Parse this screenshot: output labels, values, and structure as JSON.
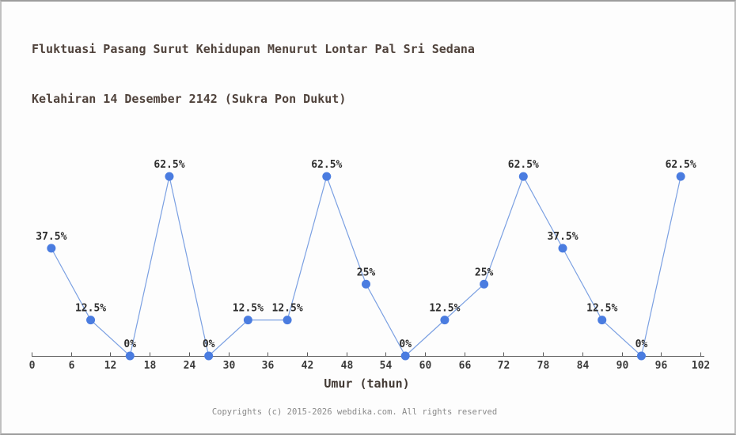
{
  "page": {
    "footer": "Copyrights (c) 2015-2026 webdika.com. All rights reserved"
  },
  "chart_data": {
    "type": "line",
    "title_line1": "Fluktuasi Pasang Surut Kehidupan Menurut Lontar Pal Sri Sedana",
    "title_line2": "Kelahiran 14 Desember 2142 (Sukra Pon Dukut)",
    "xlabel": "Umur (tahun)",
    "x": [
      3,
      9,
      15,
      21,
      27,
      33,
      39,
      45,
      51,
      57,
      63,
      69,
      75,
      81,
      87,
      93,
      99
    ],
    "values": [
      37.5,
      12.5,
      0,
      62.5,
      0,
      12.5,
      12.5,
      62.5,
      25,
      0,
      12.5,
      25,
      62.5,
      37.5,
      12.5,
      0,
      62.5
    ],
    "point_labels": [
      "37.5%",
      "12.5%",
      "0%",
      "62.5%",
      "0%",
      "12.5%",
      "12.5%",
      "62.5%",
      "25%",
      "0%",
      "12.5%",
      "25%",
      "62.5%",
      "37.5%",
      "12.5%",
      "0%",
      "62.5%"
    ],
    "x_ticks": [
      0,
      6,
      12,
      18,
      24,
      30,
      36,
      42,
      48,
      54,
      60,
      66,
      72,
      78,
      84,
      90,
      96,
      102
    ],
    "xlim": [
      0,
      102
    ],
    "ylim": [
      0,
      100
    ],
    "grid": false,
    "legend": "none",
    "colors": {
      "line": "#7ba0e2",
      "marker": "#4a7ce0",
      "axis": "#5a5a5a",
      "title_text": "#50433c",
      "label_text": "#2e2e2e",
      "footer_text": "#8a8a8a"
    }
  }
}
